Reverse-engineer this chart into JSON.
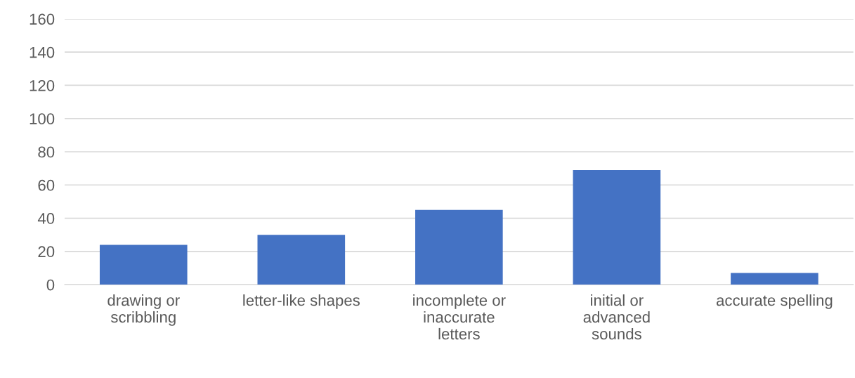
{
  "chart_data": {
    "type": "bar",
    "categories": [
      "drawing or\nscribbling",
      "letter-like shapes",
      "incomplete or\ninaccurate\nletters",
      "initial or\nadvanced\nsounds",
      "accurate spelling"
    ],
    "values": [
      24,
      30,
      45,
      69,
      7
    ],
    "color": "#4472c4",
    "ylim": [
      0,
      160
    ],
    "yticks": [
      0,
      20,
      40,
      60,
      80,
      100,
      120,
      140,
      160
    ],
    "grid": "y",
    "legend": false
  }
}
